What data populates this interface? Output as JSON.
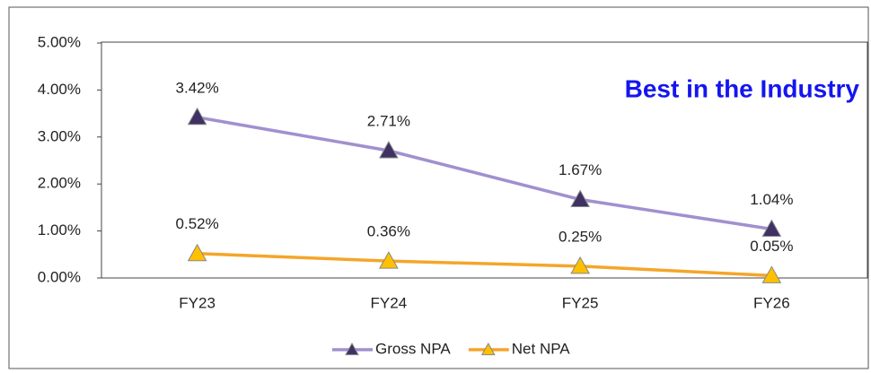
{
  "chart_data": {
    "type": "line",
    "annotation": "Best in the Industry",
    "categories": [
      "FY23",
      "FY24",
      "FY25",
      "FY26"
    ],
    "series": [
      {
        "name": "Gross NPA",
        "color": "#a190cf",
        "marker_color": "#3f3163",
        "values": [
          3.42,
          2.71,
          1.67,
          1.04
        ],
        "value_labels": [
          "3.42%",
          "2.71%",
          "1.67%",
          "1.04%"
        ]
      },
      {
        "name": "Net NPA",
        "color": "#f5a52a",
        "marker_color": "#ffc000",
        "values": [
          0.52,
          0.36,
          0.25,
          0.05
        ],
        "value_labels": [
          "0.52%",
          "0.36%",
          "0.25%",
          "0.05%"
        ]
      }
    ],
    "ylim": [
      0,
      5
    ],
    "yticks": [
      {
        "value": 0,
        "label": "0.00%"
      },
      {
        "value": 1,
        "label": "1.00%"
      },
      {
        "value": 2,
        "label": "2.00%"
      },
      {
        "value": 3,
        "label": "3.00%"
      },
      {
        "value": 4,
        "label": "4.00%"
      },
      {
        "value": 5,
        "label": "5.00%"
      }
    ],
    "grid": false,
    "legend": "bottom"
  }
}
